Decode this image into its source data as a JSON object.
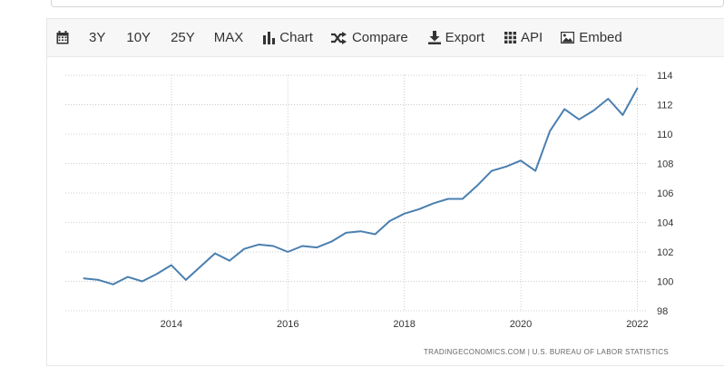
{
  "toolbar": {
    "range_buttons": [
      "3Y",
      "10Y",
      "25Y",
      "MAX"
    ],
    "chart_label": "Chart",
    "compare_label": "Compare",
    "export_label": "Export",
    "api_label": "API",
    "embed_label": "Embed"
  },
  "credits": {
    "text": "TRADINGECONOMICS.COM  |  U.S. BUREAU OF LABOR STATISTICS"
  },
  "colors": {
    "series": "#4a7fb0",
    "grid": "#cccccc",
    "text": "#333333"
  },
  "chart_data": {
    "type": "line",
    "title": "",
    "xlabel": "",
    "ylabel": "",
    "xlim": [
      2012.18,
      2022.18
    ],
    "ylim": [
      98,
      114
    ],
    "x_ticks": [
      2014,
      2016,
      2018,
      2020,
      2022
    ],
    "y_ticks": [
      98,
      100,
      102,
      104,
      106,
      108,
      110,
      112,
      114
    ],
    "y_axis_side": "right",
    "grid": true,
    "series": [
      {
        "name": "",
        "x": [
          2012.5,
          2012.75,
          2013.0,
          2013.25,
          2013.5,
          2013.75,
          2014.0,
          2014.25,
          2014.5,
          2014.75,
          2015.0,
          2015.25,
          2015.5,
          2015.75,
          2016.0,
          2016.25,
          2016.5,
          2016.75,
          2017.0,
          2017.25,
          2017.5,
          2017.75,
          2018.0,
          2018.25,
          2018.5,
          2018.75,
          2019.0,
          2019.25,
          2019.5,
          2019.75,
          2020.0,
          2020.25,
          2020.5,
          2020.75,
          2021.0,
          2021.25,
          2021.5,
          2021.75,
          2022.0
        ],
        "values": [
          100.2,
          100.1,
          99.8,
          100.3,
          100.0,
          100.5,
          101.1,
          100.1,
          101.0,
          101.9,
          101.4,
          102.2,
          102.5,
          102.4,
          102.0,
          102.4,
          102.3,
          102.7,
          103.3,
          103.4,
          103.2,
          104.1,
          104.6,
          104.9,
          105.3,
          105.6,
          105.6,
          106.5,
          107.5,
          107.8,
          108.2,
          107.5,
          110.2,
          111.7,
          111.0,
          111.6,
          112.4,
          111.3,
          113.1
        ]
      }
    ]
  }
}
